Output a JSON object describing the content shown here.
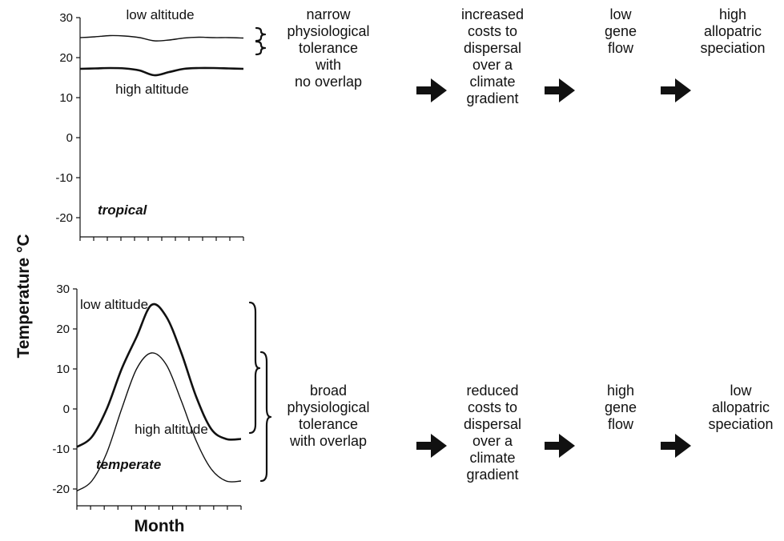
{
  "y_axis_title": "Temperature °C",
  "x_axis_title": "Month",
  "chart_data": [
    {
      "type": "line",
      "annotation": "tropical",
      "ylim": [
        -25,
        30
      ],
      "yticks": [
        "30",
        "20",
        "10",
        "0",
        "-10",
        "-20"
      ],
      "x": [
        1,
        2,
        3,
        4,
        5,
        6,
        7,
        8,
        9,
        10,
        11,
        12
      ],
      "series": [
        {
          "name": "low altitude",
          "values": [
            25,
            25.2,
            25.5,
            25.4,
            25.0,
            24.2,
            24.4,
            24.9,
            25.1,
            25.0,
            25.0,
            24.9
          ]
        },
        {
          "name": "high altitude",
          "values": [
            17.2,
            17.3,
            17.4,
            17.3,
            16.8,
            15.6,
            16.4,
            17.2,
            17.4,
            17.4,
            17.3,
            17.2
          ]
        }
      ]
    },
    {
      "type": "line",
      "annotation": "temperate",
      "ylim": [
        -25,
        30
      ],
      "yticks": [
        "30",
        "20",
        "10",
        "0",
        "-10",
        "-20"
      ],
      "x": [
        1,
        2,
        3,
        4,
        5,
        6,
        7,
        8,
        9,
        10,
        11,
        12
      ],
      "series": [
        {
          "name": "low altitude",
          "values": [
            -9.5,
            -7,
            0,
            10,
            18,
            26,
            23,
            14,
            3,
            -5,
            -7.5,
            -7.5
          ]
        },
        {
          "name": "high altitude",
          "values": [
            -20.5,
            -18,
            -11,
            0,
            10,
            14,
            11,
            2,
            -8,
            -15,
            -18,
            -18
          ]
        }
      ]
    }
  ],
  "flows": {
    "tropical": [
      "narrow\nphysiological\ntolerance\nwith\nno overlap",
      "increased\ncosts to\ndispersal\nover a\nclimate\ngradient",
      "low\ngene\nflow",
      "high\nallopatric\nspeciation"
    ],
    "temperate": [
      "broad\nphysiological\ntolerance\nwith overlap",
      "reduced\ncosts to\ndispersal\nover a\nclimate\ngradient",
      "high\ngene\nflow",
      "low\nallopatric\nspeciation"
    ]
  }
}
